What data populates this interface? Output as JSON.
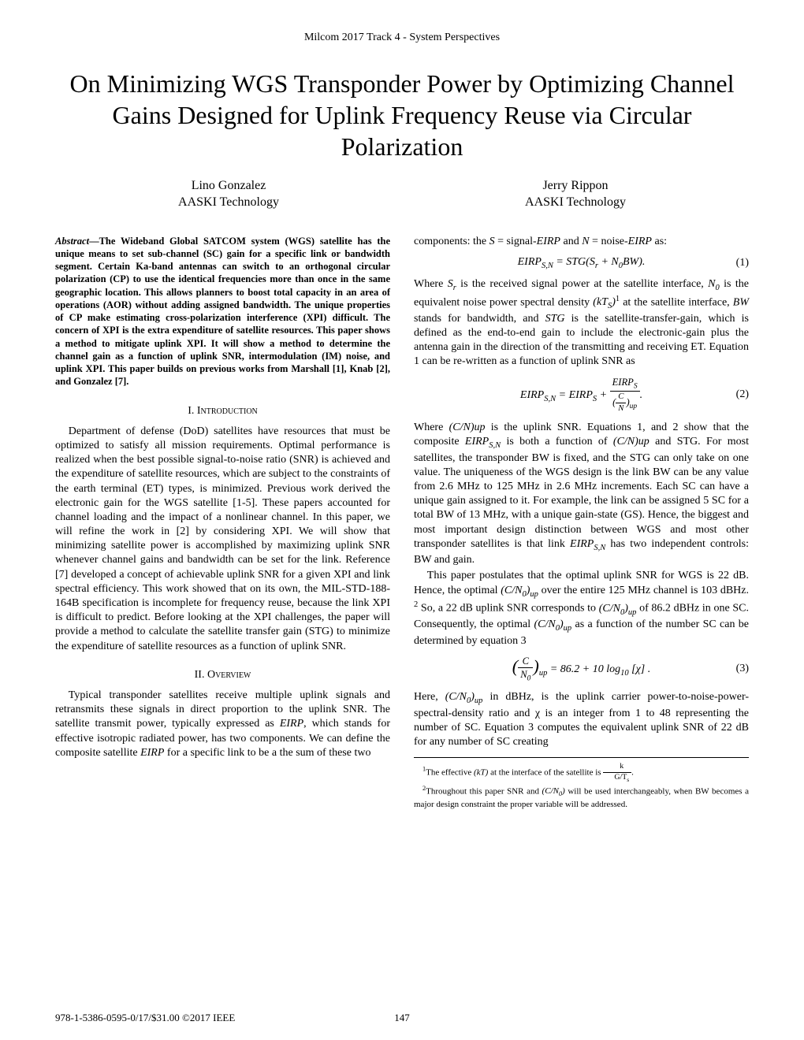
{
  "header": "Milcom 2017 Track 4 - System Perspectives",
  "title": "On Minimizing WGS Transponder Power by Optimizing Channel Gains Designed for Uplink Frequency Reuse via Circular Polarization",
  "authors": [
    {
      "name": "Lino Gonzalez",
      "affil": "AASKI Technology"
    },
    {
      "name": "Jerry Rippon",
      "affil": "AASKI Technology"
    }
  ],
  "abstract_label": "Abstract",
  "abstract": "—The Wideband Global SATCOM system (WGS) satellite has the unique means to set sub-channel (SC) gain for a specific link or bandwidth segment. Certain Ka-band antennas can switch to an orthogonal circular polarization (CP) to use the identical frequencies more than once in the same geographic location. This allows planners to boost total capacity in an area of operations (AOR) without adding assigned bandwidth. The unique properties of CP make estimating cross-polarization interference (XPI) difficult. The concern of XPI is the extra expenditure of satellite resources. This paper shows a method to mitigate uplink XPI. It will show a method to determine the channel gain as a function of uplink SNR, intermodulation (IM) noise, and uplink XPI. This paper builds on previous works from Marshall [1], Knab [2], and Gonzalez [7].",
  "section1_num": "I.",
  "section1_title": "Introduction",
  "intro_p1": "Department of defense (DoD) satellites have resources that must be optimized to satisfy all mission requirements. Optimal performance is realized when the best possible signal-to-noise ratio (SNR) is achieved and the expenditure of satellite resources, which are subject to the constraints of the earth terminal (ET) types, is minimized. Previous work derived the electronic gain for the WGS satellite [1-5]. These papers accounted for channel loading and the impact of a nonlinear channel. In this paper, we will refine the work in [2] by considering XPI. We will show that minimizing satellite power is accomplished by maximizing uplink SNR whenever channel gains and bandwidth can be set for the link. Reference [7] developed a concept of achievable uplink SNR for a given XPI and link spectral efficiency. This work showed that on its own, the MIL-STD-188-164B specification is incomplete for frequency reuse, because the link XPI is difficult to predict. Before looking at the XPI challenges, the paper will provide a method to calculate the satellite transfer gain (STG) to minimize the expenditure of satellite resources as a function of uplink SNR.",
  "section2_num": "II.",
  "section2_title": "Overview",
  "overview_p1_a": "Typical transponder satellites receive multiple uplink signals and retransmits these signals in direct proportion to the uplink SNR. The satellite transmit power, typically expressed as ",
  "overview_p1_b": ", which stands for effective isotropic radiated power, has two components. We can define the composite satellite ",
  "overview_p1_c": " for a specific link to be a the sum of these two",
  "col2_p1_a": "components: the ",
  "col2_p1_b": " = signal-",
  "col2_p1_c": " and ",
  "col2_p1_d": " = noise-",
  "col2_p1_e": " as:",
  "eq1_lhs": "EIRP",
  "eq1_sub": "S,N",
  "eq1_rhs_a": " = STG(S",
  "eq1_rhs_b": " + N",
  "eq1_rhs_c": "BW).",
  "eq1_num": "(1)",
  "col2_p2_a": "Where ",
  "col2_p2_b": " is the received signal power at the satellite interface, ",
  "col2_p2_c": " is the equivalent noise power spectral density ",
  "col2_p2_d": " at the satellite interface, ",
  "col2_p2_e": " stands for bandwidth, and ",
  "col2_p2_f": " is the satellite-transfer-gain, which is defined as the end-to-end gain to include the electronic-gain plus the antenna gain in the direction of the transmitting and receiving ET. Equation 1 can be re-written as a function of uplink SNR as",
  "eq2_num": "(2)",
  "col2_p3_a": "Where ",
  "col2_p3_b": " is the uplink SNR. Equations 1, and 2 show that the composite ",
  "col2_p3_c": " is both a function of ",
  "col2_p3_d": " and STG. For most satellites, the transponder BW is fixed, and the STG can only take on one value. The uniqueness of the WGS design is the link BW can be any value from 2.6 MHz to 125 MHz in 2.6 MHz increments. Each SC can have a unique gain assigned to it. For example, the link can be assigned 5 SC for a total BW of 13 MHz, with a unique gain-state (GS). Hence, the biggest and most important design distinction between WGS and most other transponder satellites is that link ",
  "col2_p3_e": " has two independent controls: BW and gain.",
  "col2_p4_a": "This paper postulates that the optimal uplink SNR for WGS is 22 dB. Hence, the optimal ",
  "col2_p4_b": " over the entire 125 MHz channel is 103 dBHz. ",
  "col2_p4_c": " So, a 22 dB uplink SNR corresponds to ",
  "col2_p4_d": " of 86.2 dBHz in one SC. Consequently, the optimal ",
  "col2_p4_e": " as a function of the number SC can be determined by equation 3",
  "eq3_body": " = 86.2 + 10 log",
  "eq3_body2": " [χ] .",
  "eq3_num": "(3)",
  "col2_p5_a": "Here, ",
  "col2_p5_b": " in dBHz, is the uplink carrier power-to-noise-power-spectral-density ratio and χ is an integer from 1 to 48 representing the number of SC. Equation 3 computes the equivalent uplink SNR of 22 dB for any number of SC creating",
  "footnote1_a": "The effective ",
  "footnote1_b": " at the interface of the satellite is ",
  "footnote2_a": "Throughout this paper SNR and ",
  "footnote2_b": " will be used interchangeably, when BW becomes a major design constraint the proper variable will be addressed.",
  "footer_left": "978-1-5386-0595-0/17/$31.00 ©2017 IEEE",
  "footer_page": "147",
  "var_EIRP": "EIRP",
  "var_S": "S",
  "var_N": "N",
  "var_Sr": "S",
  "var_r": "r",
  "var_N0": "N",
  "var_0": "0",
  "var_kTS": "(kT",
  "var_kTS_b": ")",
  "var_BW": "BW",
  "var_STG": "STG",
  "var_CN": "(C/N)up",
  "var_CN0": "(C/N",
  "var_CN0_b": ")",
  "var_up": "up",
  "var_kT": "(kT)",
  "frac_k": "k",
  "frac_GT": "G/T",
  "frac_s": "s",
  "var_sup1": "1",
  "var_sup2": "2",
  "var_sub10": "10",
  "var_C": "C",
  "eq2_plus": " + ",
  "eq2_eq": " = ",
  "eq2_dot": "."
}
